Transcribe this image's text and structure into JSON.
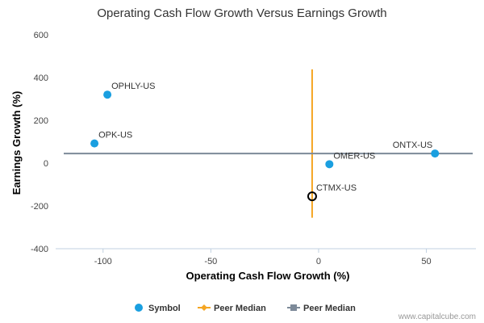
{
  "chart_data": {
    "type": "scatter",
    "title": "Operating Cash Flow Growth Versus Earnings Growth",
    "xlabel": "Operating Cash Flow Growth (%)",
    "ylabel": "Earnings Growth (%)",
    "xlim": [
      -122,
      73
    ],
    "ylim": [
      -400,
      600
    ],
    "xticks": [
      -100,
      -50,
      0,
      50
    ],
    "xtick_labels": [
      "-100",
      "-50",
      "0",
      "50"
    ],
    "yticks": [
      -400,
      -200,
      0,
      200,
      400,
      600
    ],
    "ytick_labels": [
      "-400",
      "-200",
      "0",
      "200",
      "400",
      "600"
    ],
    "grid": false,
    "legend_position": "bottom-center",
    "series": [
      {
        "name": "Symbol",
        "color": "#1a9fe0",
        "points": [
          {
            "label": "OPHLY-US",
            "x": -98,
            "y": 320
          },
          {
            "label": "OPK-US",
            "x": -104,
            "y": 92
          },
          {
            "label": "ONTX-US",
            "x": 54,
            "y": 45
          },
          {
            "label": "OMER-US",
            "x": 5,
            "y": -5
          }
        ]
      },
      {
        "name": "",
        "marker": "open-circle",
        "color": "#000000",
        "points": [
          {
            "label": "CTMX-US",
            "x": -3,
            "y": -155
          }
        ]
      }
    ],
    "medians": [
      {
        "name": "Peer Median",
        "orientation": "vertical",
        "x": -3,
        "y_range": [
          -255,
          438
        ],
        "color": "#f5a623"
      },
      {
        "name": "Peer Median",
        "orientation": "horizontal",
        "y": 45,
        "color": "#7d8a99"
      }
    ],
    "legend": [
      {
        "label": "Symbol",
        "marker": "circle",
        "color": "#1a9fe0"
      },
      {
        "label": "Peer Median",
        "marker": "diamond-line",
        "color": "#f5a623"
      },
      {
        "label": "Peer Median",
        "marker": "square-line",
        "color": "#7d8a99"
      }
    ],
    "credit": "www.capitalcube.com"
  }
}
